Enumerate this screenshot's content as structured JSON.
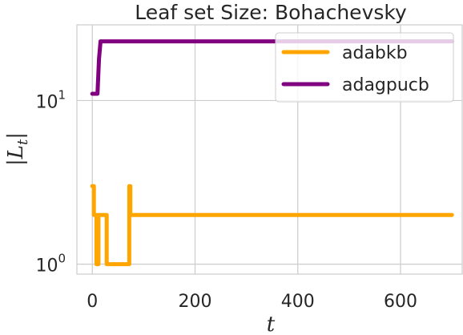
{
  "chart_data": {
    "type": "line",
    "title": "Leaf set Size: Bohachevsky",
    "xlabel": "t",
    "ylabel": "|L",
    "ylabel_sub": "t",
    "ylabel_end": "|",
    "xlim": [
      -30,
      720
    ],
    "ylim": [
      0.87,
      29
    ],
    "yscale": "log",
    "grid": true,
    "legend_position": "top-right",
    "x_ticks": [
      {
        "value": 0,
        "label": "0"
      },
      {
        "value": 200,
        "label": "200"
      },
      {
        "value": 400,
        "label": "400"
      },
      {
        "value": 600,
        "label": "600"
      }
    ],
    "y_ticks": [
      {
        "value": 1,
        "base": "10",
        "exp": "0"
      },
      {
        "value": 10,
        "base": "10",
        "exp": "1"
      }
    ],
    "series": [
      {
        "name": "adabkb",
        "color": "#FFA500",
        "points": [
          [
            0,
            3
          ],
          [
            3,
            3
          ],
          [
            3,
            2
          ],
          [
            8,
            2
          ],
          [
            8,
            1
          ],
          [
            12,
            1
          ],
          [
            12,
            2
          ],
          [
            28,
            2
          ],
          [
            28,
            1
          ],
          [
            72,
            1
          ],
          [
            72,
            3
          ],
          [
            74,
            3
          ],
          [
            74,
            2
          ],
          [
            700,
            2
          ]
        ]
      },
      {
        "name": "adagpucb",
        "color": "#800080",
        "points": [
          [
            0,
            11
          ],
          [
            5,
            11
          ],
          [
            10,
            11
          ],
          [
            13,
            18
          ],
          [
            16,
            23
          ],
          [
            700,
            23
          ]
        ]
      }
    ]
  }
}
